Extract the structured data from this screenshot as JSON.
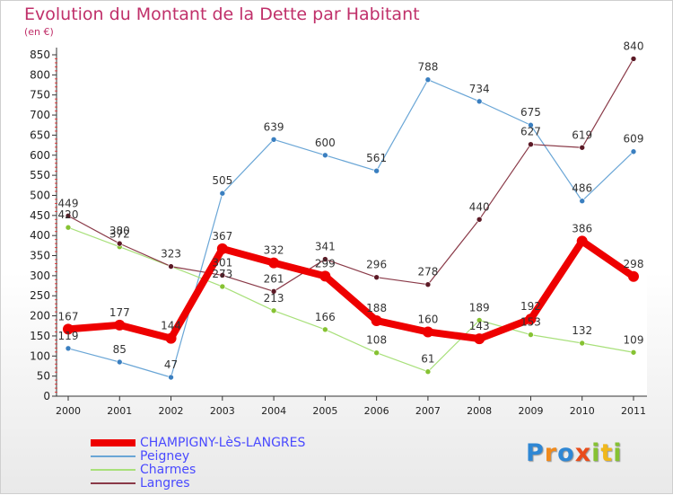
{
  "header": {
    "title": "Evolution du Montant de la Dette par Habitant",
    "subtitle": "(en €)"
  },
  "logo": {
    "letters": [
      "P",
      "r",
      "o",
      "x",
      "i",
      "t",
      "i"
    ],
    "colors": [
      "#2f87d4",
      "#f08a1c",
      "#2f87d4",
      "#e94c1a",
      "#86c232",
      "#f0b81c",
      "#86c232"
    ]
  },
  "chart_data": {
    "type": "line",
    "title": "Evolution du Montant de la Dette par Habitant",
    "ylabel": "(en €)",
    "x": [
      "2000",
      "2001",
      "2002",
      "2003",
      "2004",
      "2005",
      "2006",
      "2007",
      "2008",
      "2009",
      "2010",
      "2011"
    ],
    "ylim": [
      0,
      850
    ],
    "yticks": [
      0,
      50,
      100,
      150,
      200,
      250,
      300,
      350,
      400,
      450,
      500,
      550,
      600,
      650,
      700,
      750,
      800,
      850
    ],
    "grid": false,
    "legend": "bottom-left",
    "series": [
      {
        "name": "Peigney",
        "color": "#6aa6d6",
        "marker": "#3a7fc0",
        "width": 1.2,
        "values": [
          119,
          85,
          47,
          505,
          639,
          600,
          561,
          788,
          734,
          675,
          486,
          609
        ],
        "labels": [
          "119",
          "85",
          "47",
          "505",
          "639",
          "600",
          "561",
          "788",
          "734",
          "675",
          "486",
          "609"
        ]
      },
      {
        "name": "Charmes",
        "color": "#a8e07a",
        "marker": "#86c232",
        "width": 1.2,
        "values": [
          420,
          372,
          323,
          273,
          213,
          166,
          108,
          61,
          189,
          153,
          132,
          109
        ],
        "labels": [
          "420",
          "372",
          "",
          "273",
          "213",
          "166",
          "108",
          "61",
          "189",
          "153",
          "132",
          "109"
        ]
      },
      {
        "name": "Langres",
        "color": "#8a3a48",
        "marker": "#5c1a26",
        "width": 1.2,
        "values": [
          449,
          380,
          323,
          301,
          261,
          341,
          296,
          278,
          440,
          627,
          619,
          840
        ],
        "labels": [
          "449",
          "380",
          "323",
          "301",
          "261",
          "341",
          "296",
          "278",
          "440",
          "627",
          "619",
          "840"
        ]
      },
      {
        "name": "CHAMPIGNY-LèS-LANGRES",
        "color": "#ee0000",
        "marker": "#ee0000",
        "width": 8,
        "values": [
          167,
          177,
          144,
          367,
          332,
          299,
          188,
          160,
          143,
          192,
          386,
          298
        ],
        "labels": [
          "167",
          "177",
          "144",
          "367",
          "332",
          "299",
          "188",
          "160",
          "143",
          "192",
          "386",
          "298"
        ]
      }
    ]
  },
  "legend_items": [
    {
      "name": "CHAMPIGNY-LèS-LANGRES",
      "color": "#ee0000",
      "thickness": 8
    },
    {
      "name": "Peigney",
      "color": "#6aa6d6",
      "thickness": 2
    },
    {
      "name": "Charmes",
      "color": "#a8e07a",
      "thickness": 2
    },
    {
      "name": "Langres",
      "color": "#8a3a48",
      "thickness": 2
    }
  ]
}
